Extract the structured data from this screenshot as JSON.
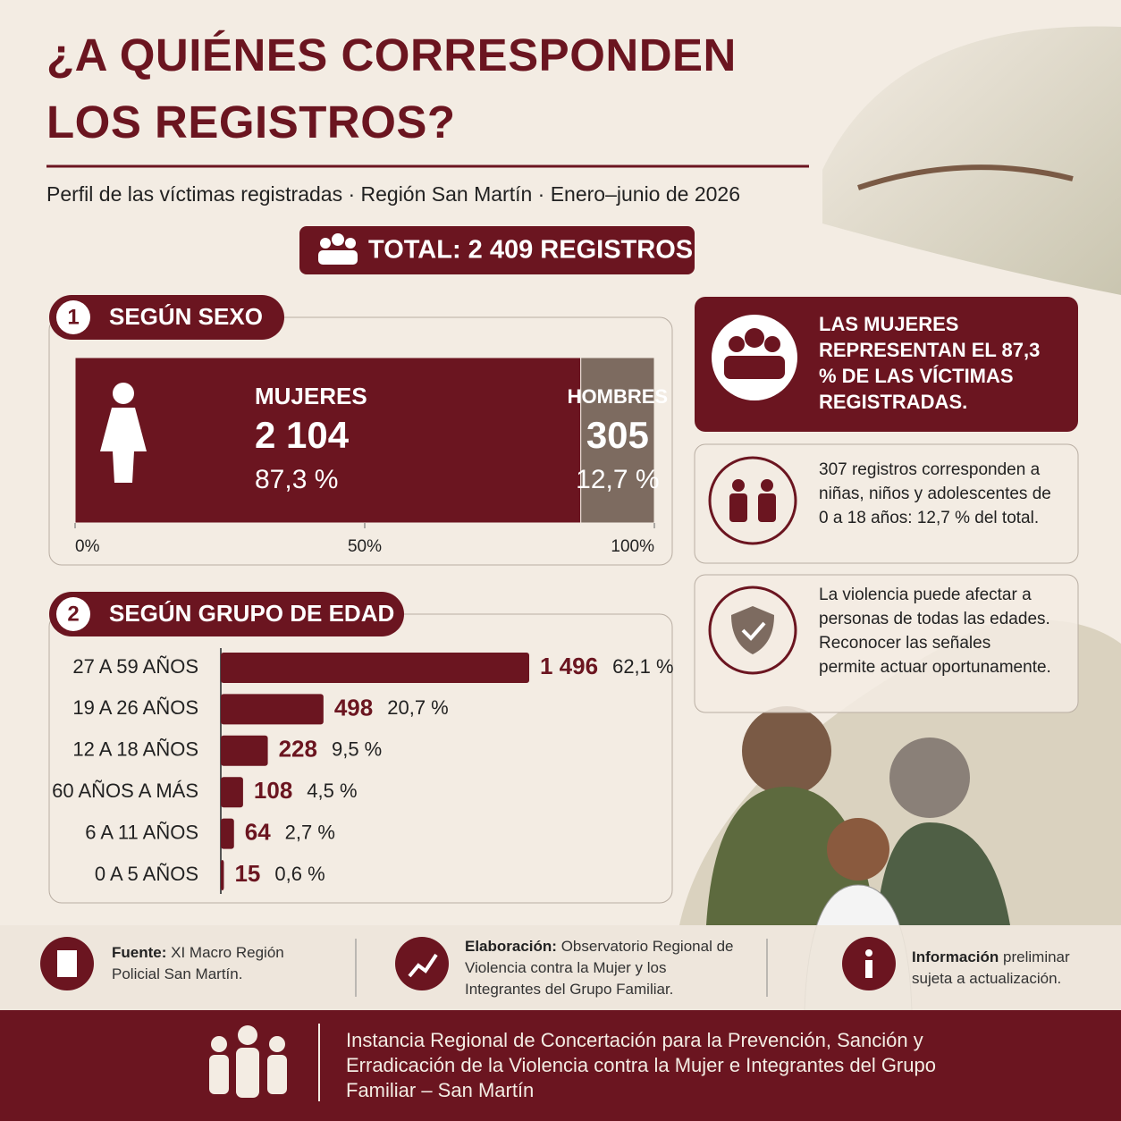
{
  "header": {
    "title_lines": [
      "¿A QUIÉNES CORRESPONDEN",
      "LOS REGISTROS?"
    ],
    "subtitle": "Perfil de las víctimas registradas · Región San Martín · Enero–junio de 2026"
  },
  "total": "TOTAL: 2 409 REGISTROS",
  "chart_data": [
    {
      "type": "stacked_bar",
      "number": "1",
      "title": "SEGÚN SEXO",
      "categories": [
        "MUJERES",
        "HOMBRES"
      ],
      "values": [
        2104,
        305
      ],
      "value_labels": [
        "2 104",
        "305"
      ],
      "percentages": [
        87.3,
        12.7
      ],
      "percentage_labels": [
        "87,3 %",
        "12,7 %"
      ],
      "colors": [
        "#6b1520",
        "#7d6b60"
      ],
      "xlim": [
        0,
        100
      ],
      "xticks": [
        {
          "value": 0,
          "label": "0%"
        },
        {
          "value": 50,
          "label": "50%"
        },
        {
          "value": 100,
          "label": "100%"
        }
      ]
    },
    {
      "type": "hbar",
      "number": "2",
      "title": "SEGÚN GRUPO DE EDAD",
      "categories": [
        "27 A 59 AÑOS",
        "19 A 26 AÑOS",
        "12 A 18 AÑOS",
        "60 AÑOS A MÁS",
        "6 A 11 AÑOS",
        "0 A 5 AÑOS"
      ],
      "values": [
        1496,
        498,
        228,
        108,
        64,
        15
      ],
      "value_labels": [
        "1 496",
        "498",
        "228",
        "108",
        "64",
        "15"
      ],
      "percentages": [
        62.1,
        20.7,
        9.5,
        4.5,
        2.7,
        0.6
      ],
      "percentage_labels": [
        "62,1 %",
        "20,7 %",
        "9,5 %",
        "4,5 %",
        "2,7 %",
        "0,6 %"
      ],
      "color": "#6b1520"
    }
  ],
  "callouts": [
    "LAS MUJERES REPRESENTAN EL 87,3 % DE LAS VÍCTIMAS REGISTRADAS.",
    "307 registros corresponden a niñas, niños y adolescentes de 0 a 18 años: 12,7 % del total.",
    "La violencia puede afectar a personas de todas las edades. Reconocer las señales permite actuar oportunamente."
  ],
  "footer": {
    "notes": [
      {
        "label": "Fuente:",
        "text": "XI Macro Región Policial San Martín."
      },
      {
        "label": "Elaboración:",
        "text": "Observatorio Regional de Violencia contra la Mujer y los Integrantes del Grupo Familiar."
      },
      {
        "label": "Información",
        "text": "preliminar sujeta a actualización."
      }
    ],
    "institution": "Instancia Regional de Concertación para la Prevención, Sanción y Erradicación de la Violencia contra la Mujer e Integrantes del Grupo Familiar – San Martín"
  }
}
